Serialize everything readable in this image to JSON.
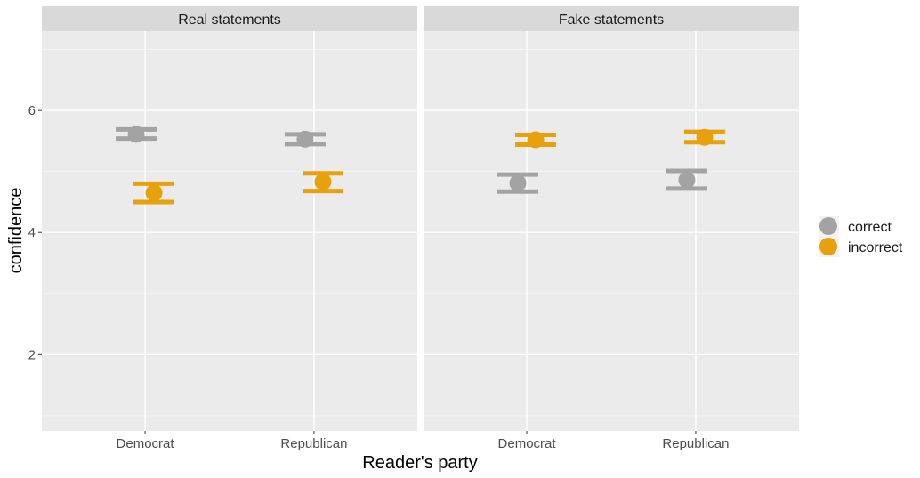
{
  "chart_data": {
    "type": "scatter",
    "subtype": "point-errorbar-faceted",
    "xlabel": "Reader's party",
    "ylabel": "confidence",
    "categories": [
      "Democrat",
      "Republican"
    ],
    "ylim": [
      0.75,
      7.3
    ],
    "yticks": [
      2,
      4,
      6
    ],
    "grid": true,
    "legend_position": "right",
    "colors": {
      "correct": "#a3a3a3",
      "incorrect": "#e8a10c"
    },
    "facets": [
      {
        "title": "Real statements",
        "series": [
          {
            "name": "correct",
            "values": [
              5.61,
              5.53
            ],
            "lower": [
              5.54,
              5.45
            ],
            "upper": [
              5.69,
              5.61
            ]
          },
          {
            "name": "incorrect",
            "values": [
              4.65,
              4.83
            ],
            "lower": [
              4.5,
              4.68
            ],
            "upper": [
              4.8,
              4.97
            ]
          }
        ]
      },
      {
        "title": "Fake statements",
        "series": [
          {
            "name": "correct",
            "values": [
              4.81,
              4.86
            ],
            "lower": [
              4.67,
              4.72
            ],
            "upper": [
              4.95,
              5.01
            ]
          },
          {
            "name": "incorrect",
            "values": [
              5.52,
              5.56
            ],
            "lower": [
              5.44,
              5.48
            ],
            "upper": [
              5.6,
              5.65
            ]
          }
        ]
      }
    ]
  }
}
